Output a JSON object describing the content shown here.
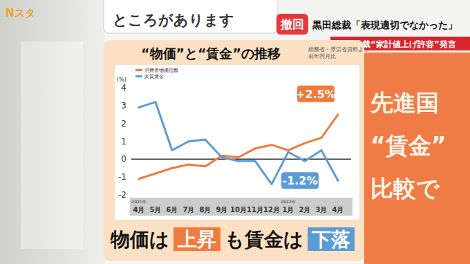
{
  "chart_data": {
    "type": "line",
    "title": "“物価”と“賃金”の推移",
    "source": [
      "総務省・厚労省資料より",
      "前年同月比"
    ],
    "y_label": "(%)",
    "categories": [
      "4月",
      "5月",
      "6月",
      "7月",
      "8月",
      "9月",
      "10月",
      "11月",
      "12月",
      "1月",
      "2月",
      "3月",
      "4月"
    ],
    "category_years": [
      "2021年",
      null,
      null,
      null,
      null,
      null,
      null,
      null,
      null,
      "2022年",
      null,
      null,
      null
    ],
    "series": [
      {
        "name": "消費者物価指数",
        "color": "#ee7a3c",
        "values": [
          -1.1,
          -0.8,
          -0.5,
          -0.3,
          -0.4,
          0.2,
          0.1,
          0.6,
          0.8,
          0.5,
          0.9,
          1.2,
          2.5
        ],
        "value_labels": [
          null,
          null,
          null,
          null,
          null,
          null,
          null,
          null,
          null,
          null,
          null,
          null,
          "+2.5%"
        ]
      },
      {
        "name": "実質賃金",
        "color": "#5b9bd5",
        "values": [
          2.9,
          3.2,
          0.5,
          1.0,
          1.1,
          0.1,
          -0.1,
          -0.1,
          -1.4,
          0.4,
          -0.1,
          0.5,
          -1.2
        ],
        "value_labels": [
          null,
          null,
          null,
          null,
          null,
          null,
          null,
          null,
          null,
          null,
          null,
          null,
          "-1.2%"
        ]
      }
    ],
    "ylim": [
      -2,
      4
    ],
    "yticks": [
      -2,
      -1,
      0,
      1,
      2,
      3,
      4
    ],
    "grid": false,
    "legend": "upper left",
    "data_labels": true
  },
  "page": {
    "logo": "Nスタ",
    "top_text": "ところがあります",
    "badge": "撤回",
    "headline": "黒田総裁「表現適切でなかった」",
    "banner": "日銀総裁“家計値上げ許容”発言",
    "side_text": [
      "先進国",
      "“賃金”",
      "比較で"
    ],
    "caption": [
      "物価は",
      "上昇",
      "も賃金は",
      "下落"
    ]
  }
}
